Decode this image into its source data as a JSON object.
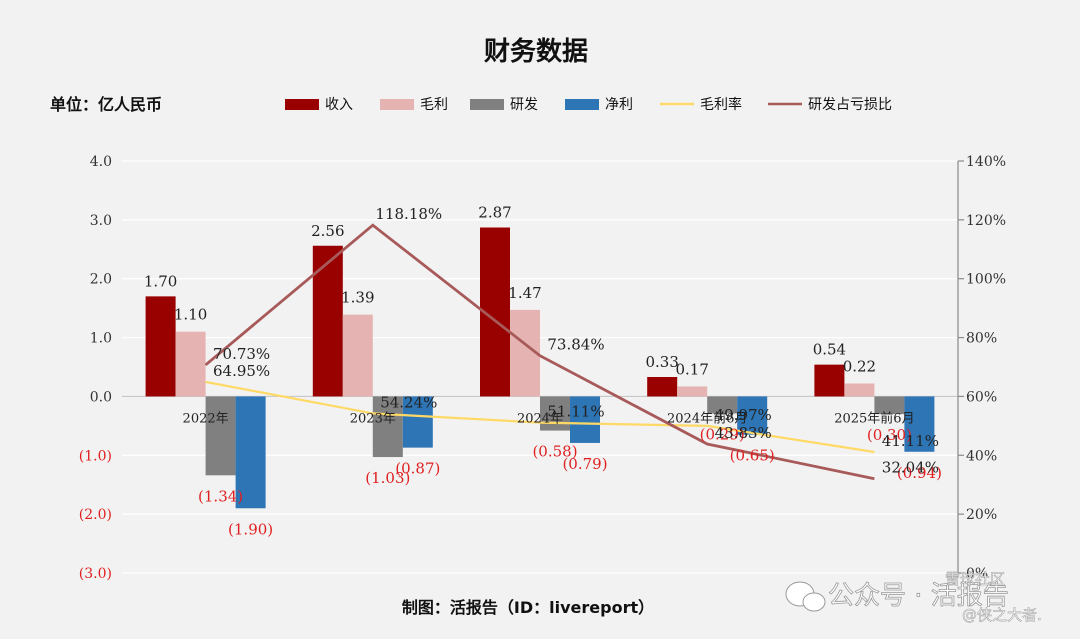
{
  "chart_data": {
    "type": "bar",
    "title": "财务数据",
    "unit_label": "单位：亿人民币",
    "categories": [
      "2022年",
      "2023年",
      "2024年",
      "2024年前6月",
      "2025年前6月"
    ],
    "ylim": [
      -3.0,
      4.0
    ],
    "yticks": [
      4.0,
      3.0,
      2.0,
      1.0,
      0.0,
      -1.0,
      -2.0,
      -3.0
    ],
    "ytick_labels": [
      "4.0",
      "3.0",
      "2.0",
      "1.0",
      "0.0",
      "(1.0)",
      "(2.0)",
      "(3.0)"
    ],
    "y2lim": [
      0,
      140
    ],
    "y2ticks": [
      140,
      120,
      100,
      80,
      60,
      40,
      20,
      0
    ],
    "y2tick_labels": [
      "140%",
      "120%",
      "100%",
      "80%",
      "60%",
      "40%",
      "20%",
      "0%"
    ],
    "bar_series": [
      {
        "name": "收入",
        "color": "#990000",
        "values": [
          1.7,
          2.56,
          2.87,
          0.33,
          0.54
        ],
        "labels": [
          "1.70",
          "2.56",
          "2.87",
          "0.33",
          "0.54"
        ]
      },
      {
        "name": "毛利",
        "color": "#e6b3b3",
        "values": [
          1.1,
          1.39,
          1.47,
          0.17,
          0.22
        ],
        "labels": [
          "1.10",
          "1.39",
          "1.47",
          "0.17",
          "0.22"
        ]
      },
      {
        "name": "研发",
        "color": "#808080",
        "values": [
          -1.34,
          -1.03,
          -0.58,
          -0.29,
          -0.3
        ],
        "labels": [
          "(1.34)",
          "(1.03)",
          "(0.58)",
          "(0.29)",
          "(0.30)"
        ]
      },
      {
        "name": "净利",
        "color": "#2e75b6",
        "values": [
          -1.9,
          -0.87,
          -0.79,
          -0.65,
          -0.94
        ],
        "labels": [
          "(1.90)",
          "(0.87)",
          "(0.79)",
          "(0.65)",
          "(0.94)"
        ]
      }
    ],
    "line_series": [
      {
        "name": "毛利率",
        "color": "#ffd966",
        "values": [
          64.95,
          54.24,
          51.11,
          49.97,
          41.11
        ],
        "labels": [
          "64.95%",
          "54.24%",
          "51.11%",
          "49.97%",
          "41.11%"
        ]
      },
      {
        "name": "研发占亏损比",
        "color": "#a85a5a",
        "values": [
          70.73,
          118.18,
          73.84,
          43.83,
          32.04
        ],
        "labels": [
          "70.73%",
          "118.18%",
          "73.84%",
          "43.83%",
          "32.04%"
        ]
      }
    ],
    "footer": "制图：活报告（ID：livereport）"
  },
  "watermark": {
    "line1": "公众号 · 活报告",
    "line2": "雪球社区",
    "line3": "@侠之大者."
  }
}
